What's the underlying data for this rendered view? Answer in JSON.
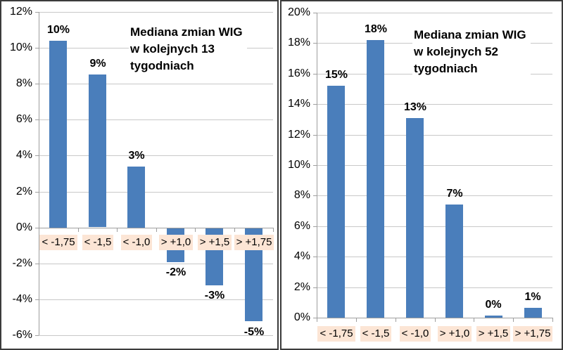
{
  "colors": {
    "bar": "#4a7ebb",
    "grid": "#c8c8c8",
    "axis": "#9e9e9e",
    "category_bg": "#fce5d5",
    "panel_border": "#3b3b3b",
    "text": "#000000"
  },
  "chart_data": [
    {
      "type": "bar",
      "title": "Mediana zmian WIG w kolejnych 13 tygodniach",
      "title_lines": [
        "Mediana zmian WIG",
        "w kolejnych 13",
        "tygodniach"
      ],
      "categories": [
        "< -1,75",
        "< -1,5",
        "< -1,0",
        "> +1,0",
        "> +1,5",
        "> +1,75"
      ],
      "values": [
        10.4,
        8.5,
        3.4,
        -1.9,
        -3.2,
        -5.2
      ],
      "value_labels": [
        "10%",
        "9%",
        "3%",
        "-2%",
        "-3%",
        "-5%"
      ],
      "ylim": [
        -6,
        12
      ],
      "ytick_step": 2,
      "ytick_suffix": "%",
      "grid": true,
      "legend": "none"
    },
    {
      "type": "bar",
      "title": "Mediana zmian WIG w kolejnych 52 tygodniach",
      "title_lines": [
        "Mediana zmian WIG",
        "w kolejnych 52",
        "tygodniach"
      ],
      "categories": [
        "< -1,75",
        "< -1,5",
        "< -1,0",
        "> +1,0",
        "> +1,5",
        "> +1,75"
      ],
      "values": [
        15.2,
        18.2,
        13.1,
        7.4,
        0.15,
        0.65
      ],
      "value_labels": [
        "15%",
        "18%",
        "13%",
        "7%",
        "0%",
        "1%"
      ],
      "ylim": [
        0,
        20
      ],
      "ytick_step": 2,
      "ytick_suffix": "%",
      "grid": true,
      "legend": "none"
    }
  ]
}
